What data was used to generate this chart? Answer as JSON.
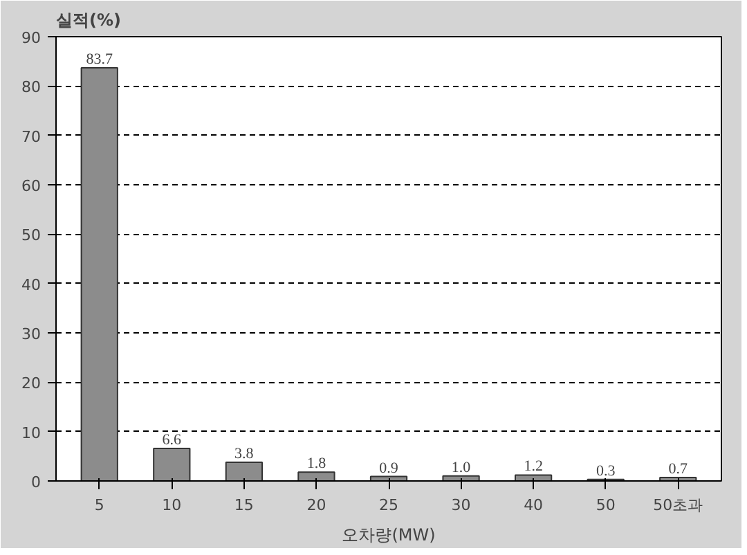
{
  "chart_data": {
    "type": "bar",
    "ylabel": "실적(%)",
    "xlabel": "오차량(MW)",
    "categories": [
      "5",
      "10",
      "15",
      "20",
      "25",
      "30",
      "40",
      "50",
      "50초과"
    ],
    "values": [
      83.7,
      6.6,
      3.8,
      1.8,
      0.9,
      1.0,
      1.2,
      0.3,
      0.7
    ],
    "value_labels": [
      "83.7",
      "6.6",
      "3.8",
      "1.8",
      "0.9",
      "1.0",
      "1.2",
      "0.3",
      "0.7"
    ],
    "color": "#8c8c8c",
    "ylim": [
      0,
      90
    ],
    "yticks": [
      0,
      10,
      20,
      30,
      40,
      50,
      60,
      70,
      80,
      90
    ],
    "grid": "y",
    "line_style": "dashed"
  }
}
